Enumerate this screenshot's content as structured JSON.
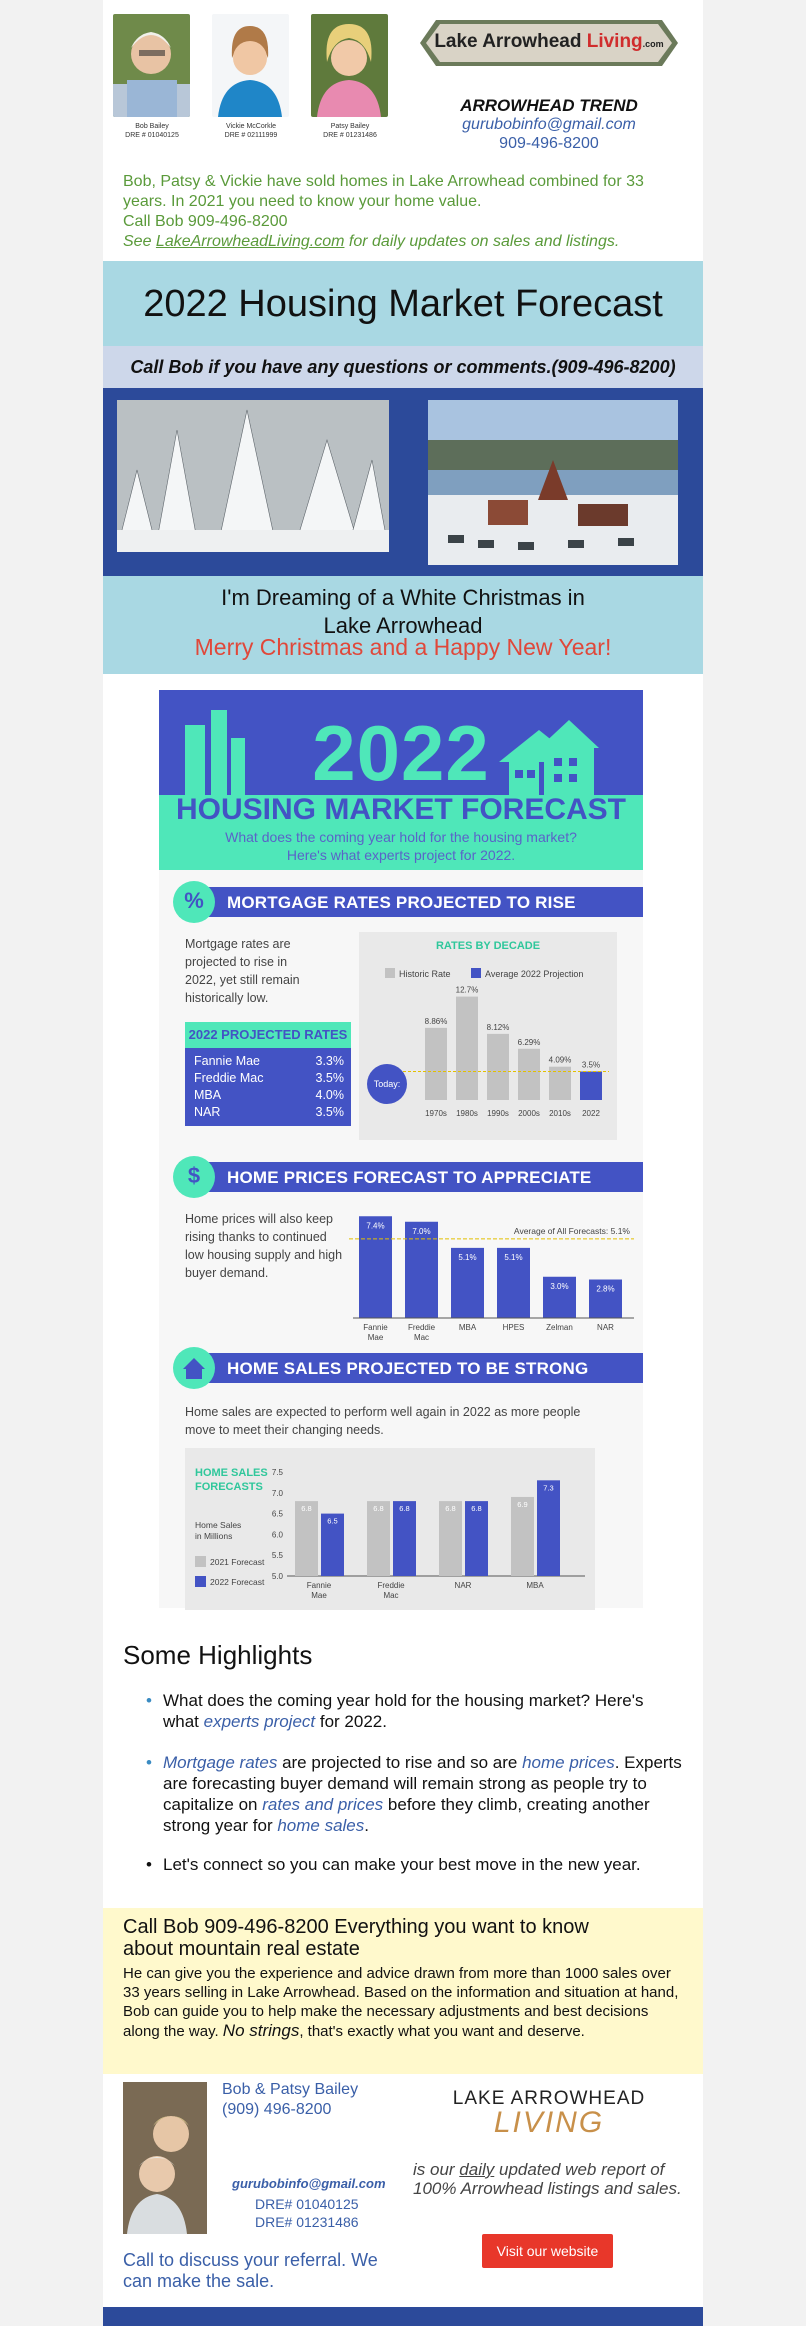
{
  "header": {
    "agents": [
      {
        "name": "Bob Bailey",
        "dre": "DRE # 01040125"
      },
      {
        "name": "Vickie McCorkle",
        "dre": "DRE # 02111999"
      },
      {
        "name": "Patsy Bailey",
        "dre": "DRE # 01231486"
      }
    ],
    "logo_text": "Lake Arrowhead",
    "logo_accent": "Living",
    "logo_suffix": ".com",
    "trend_title": "ARROWHEAD TREND",
    "email": "gurubobinfo@gmail.com",
    "phone": "909-496-8200"
  },
  "intro": {
    "line1": "Bob, Patsy & Vickie have sold homes in Lake Arrowhead combined for 33 years. In 2021 you need to know your home value.",
    "line2": "Call Bob 909-496-8200",
    "line3_pre": "See ",
    "line3_link": "LakeArrowheadLiving.com",
    "line3_post": " for daily updates on sales and listings."
  },
  "main_title": "2022 Housing Market Forecast",
  "call_line": "Call Bob if you have any questions or comments.(909-496-8200)",
  "dream": {
    "line1": "I'm Dreaming of a White Christmas in",
    "line2": "Lake Arrowhead",
    "line3": "Merry Christmas and a Happy New Year!"
  },
  "infographic": {
    "big_year": "2022",
    "headline": "HOUSING MARKET FORECAST",
    "sub1": "What does the coming year hold for the housing market?",
    "sub2": "Here's what experts project for 2022.",
    "section1": {
      "icon": "%",
      "title": "MORTGAGE RATES PROJECTED TO RISE",
      "text": "Mortgage rates are projected to rise in 2022, yet still remain historically low.",
      "box_title": "2022 PROJECTED RATES",
      "rates": [
        {
          "label": "Fannie Mae",
          "value": "3.3%"
        },
        {
          "label": "Freddie Mac",
          "value": "3.5%"
        },
        {
          "label": "MBA",
          "value": "4.0%"
        },
        {
          "label": "NAR",
          "value": "3.5%"
        }
      ]
    },
    "section2": {
      "icon": "$",
      "title": "HOME PRICES FORECAST TO APPRECIATE",
      "text": "Home prices will also keep rising thanks to continued low housing supply and high buyer demand."
    },
    "section3": {
      "icon": "house",
      "title": "HOME SALES PROJECTED TO BE STRONG",
      "text": "Home sales are expected to perform well again in 2022 as more people move to meet their changing needs."
    }
  },
  "chart_data": [
    {
      "type": "bar",
      "title": "RATES BY DECADE",
      "categories": [
        "1970s",
        "1980s",
        "1990s",
        "2000s",
        "2010s",
        "2022"
      ],
      "series": [
        {
          "name": "Historic Rate",
          "values": [
            8.86,
            12.7,
            8.12,
            6.29,
            4.09,
            null
          ]
        },
        {
          "name": "Average 2022 Projection",
          "values": [
            null,
            null,
            null,
            null,
            null,
            3.5
          ]
        }
      ],
      "value_labels": [
        "8.86%",
        "12.7%",
        "8.12%",
        "6.29%",
        "4.09%",
        "3.5%"
      ],
      "marker_label": "Today:",
      "ylim": [
        0,
        14
      ]
    },
    {
      "type": "bar",
      "categories": [
        "Fannie Mae",
        "Freddie Mac",
        "MBA",
        "HPES",
        "Zelman",
        "NAR"
      ],
      "values": [
        7.4,
        7.0,
        5.1,
        5.1,
        3.0,
        2.8
      ],
      "value_labels": [
        "7.4%",
        "7.0%",
        "5.1%",
        "5.1%",
        "3.0%",
        "2.8%"
      ],
      "average_label": "Average of All Forecasts: 5.1%",
      "average": 5.1,
      "ylim": [
        0,
        8
      ]
    },
    {
      "type": "bar",
      "title": "HOME SALES FORECASTS",
      "ylabel": "Home Sales in Millions",
      "categories": [
        "Fannie Mae",
        "Freddie Mac",
        "NAR",
        "MBA"
      ],
      "series": [
        {
          "name": "2021 Forecast",
          "values": [
            6.8,
            6.8,
            6.8,
            6.9
          ]
        },
        {
          "name": "2022 Forecast",
          "values": [
            6.5,
            6.8,
            6.8,
            7.3
          ]
        }
      ],
      "yticks": [
        "7.5",
        "7.0",
        "6.5",
        "6.0",
        "5.5",
        "5.0"
      ],
      "ylim": [
        5.0,
        7.5
      ],
      "colors": [
        "#c2c2c2",
        "#4353c4"
      ]
    }
  ],
  "highlights": {
    "title": "Some Highlights",
    "item1_a": "What does the coming year hold for the housing market? Here's what ",
    "item1_link": "experts project",
    "item1_b": " for 2022.",
    "item2_link1": "Mortgage rates",
    "item2_a": " are projected to rise and so are ",
    "item2_link2": "home prices",
    "item2_b": ". Experts are forecasting buyer demand will remain strong as people try to capitalize on ",
    "item2_link3": "rates and prices",
    "item2_c": " before they climb, creating another strong year for ",
    "item2_link4": "home sales",
    "item2_d": ".",
    "item3": "Let's connect so you can make your best move in the new year."
  },
  "yellow": {
    "heading": "Call Bob  909-496-8200   Everything you want to know about mountain real estate",
    "body_a": "He can give you the experience and advice drawn from more than 1000 sales over 33 years selling in Lake Arrowhead. Based on the information and situation at hand, Bob can guide you to help make the necessary adjustments and best decisions along the way. ",
    "body_em": "No strings",
    "body_b": ", that's exactly what you want and deserve."
  },
  "footer": {
    "names": "Bob & Patsy Bailey",
    "phone": "(909) 496-8200",
    "email": "gurubobinfo@gmail.com",
    "dre1": "DRE# 01040125",
    "dre2": "DRE# 01231486",
    "cta": "Call to discuss your referral. We can make the sale.",
    "logo_line1": "LAKE ARROWHEAD",
    "logo_line2": "LIVING",
    "daily_a": "is our ",
    "daily_u": "daily",
    "daily_b": " updated web report of 100% Arrowhead listings and sales.",
    "button": "Visit our website"
  },
  "colors": {
    "accent_blue": "#4353c4",
    "mint": "#4fe7b9",
    "sky_band": "#a9d8e3",
    "link_blue": "#3a5fa8",
    "green_text": "#5a9a3a",
    "red": "#e0483a"
  }
}
